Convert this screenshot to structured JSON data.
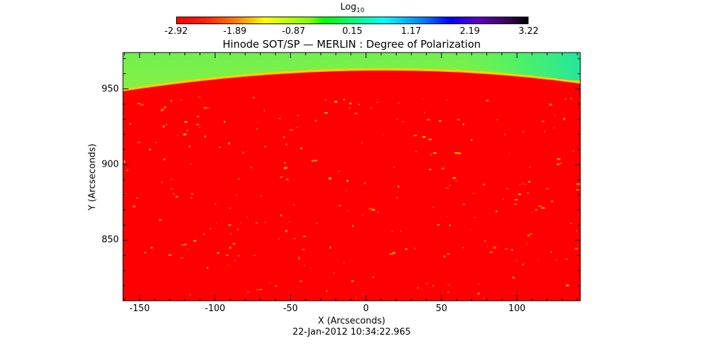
{
  "chart_data": {
    "type": "heatmap",
    "title": "Hinode SOT/SP — MERLIN : Degree of Polarization",
    "xlabel": "X (Arcseconds)",
    "ylabel": "Y (Arcseconds)",
    "xlim": [
      -161,
      142
    ],
    "ylim": [
      810,
      974
    ],
    "xticks": [
      "-150",
      "-100",
      "-50",
      "0",
      "50",
      "100"
    ],
    "xtick_values": [
      -150,
      -100,
      -50,
      0,
      50,
      100
    ],
    "yticks": [
      "950",
      "900",
      "850"
    ],
    "ytick_values": [
      950,
      900,
      850
    ],
    "colorbar": {
      "label": "Log",
      "label_sub": "10",
      "ticks": [
        "-2.92",
        "-1.89",
        "-0.87",
        "0.15",
        "1.17",
        "2.19",
        "3.22"
      ],
      "range": [
        -2.92,
        3.22
      ]
    },
    "timestamp": "22-Jan-2012 10:34:22.965",
    "colors": {
      "disk": "#ff0000",
      "limb": "#ffff00",
      "offlimb": "#80ff40"
    }
  }
}
